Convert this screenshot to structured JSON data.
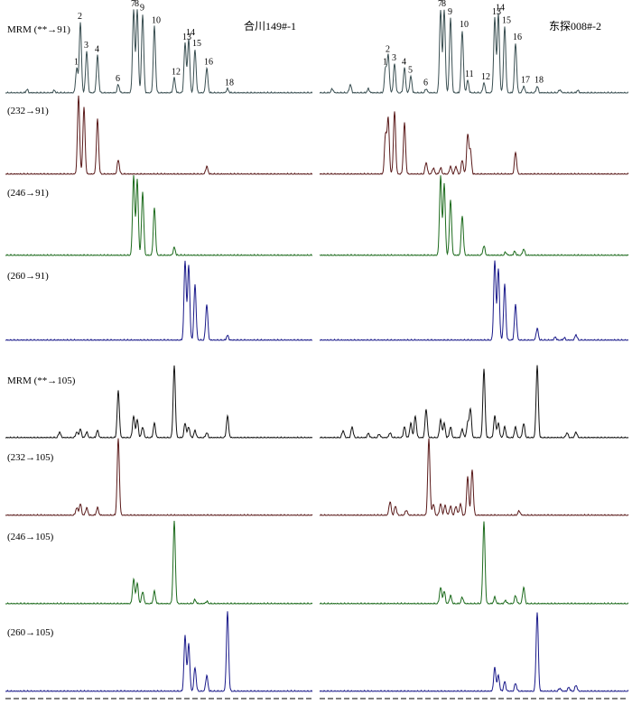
{
  "chart_data": {
    "type": "line",
    "title": "",
    "xlabel": "",
    "ylabel": "",
    "grid": false,
    "columns": [
      {
        "sample": "合川149#-1"
      },
      {
        "sample": "东探008#-2"
      }
    ],
    "rows": [
      {
        "label": "MRM (**→91)",
        "color": "#3a4f52",
        "peak_labels": true
      },
      {
        "label": "(232→91)",
        "color": "#5a1a1a"
      },
      {
        "label": "(246→91)",
        "color": "#1d6b1d"
      },
      {
        "label": "(260→91)",
        "color": "#1a1a8a"
      },
      {
        "label": "MRM (**→105)",
        "color": "#111111"
      },
      {
        "label": "(232→105)",
        "color": "#5a1a1a"
      },
      {
        "label": "(246→105)",
        "color": "#1d6b1d"
      },
      {
        "label": "(260→105)",
        "color": "#1a1a8a"
      }
    ],
    "peak_labels": [
      [
        "1",
        "2",
        "3",
        "4",
        "6",
        "7",
        "8",
        "9",
        "10",
        "12",
        "13",
        "14",
        "15",
        "16",
        "18"
      ],
      [
        "1",
        "2",
        "3",
        "4",
        "5",
        "6",
        "7",
        "8",
        "9",
        "10",
        "11",
        "12",
        "13",
        "14",
        "15",
        "16",
        "17",
        "18"
      ]
    ],
    "peaks": [
      [
        [
          [
            85,
            0.3
          ],
          [
            89,
            0.85
          ],
          [
            96,
            0.5
          ],
          [
            108,
            0.45
          ],
          [
            131,
            0.1
          ],
          [
            148,
            1.0
          ],
          [
            152,
            1.0
          ],
          [
            158,
            0.95
          ],
          [
            171,
            0.8
          ],
          [
            193,
            0.18
          ],
          [
            205,
            0.6
          ],
          [
            209,
            0.65
          ],
          [
            216,
            0.52
          ],
          [
            229,
            0.3
          ],
          [
            252,
            0.05
          ],
          [
            30,
            0.04
          ],
          [
            60,
            0.03
          ]
        ],
        [
          [
            87,
            1.0
          ],
          [
            93,
            0.85
          ],
          [
            108,
            0.7
          ],
          [
            131,
            0.18
          ],
          [
            229,
            0.1
          ]
        ],
        [
          [
            148,
            1.0
          ],
          [
            152,
            0.95
          ],
          [
            158,
            0.8
          ],
          [
            171,
            0.6
          ],
          [
            193,
            0.1
          ]
        ],
        [
          [
            205,
            1.0
          ],
          [
            209,
            0.95
          ],
          [
            216,
            0.7
          ],
          [
            229,
            0.45
          ],
          [
            252,
            0.06
          ]
        ],
        [
          [
            66,
            0.08
          ],
          [
            85,
            0.08
          ],
          [
            89,
            0.12
          ],
          [
            96,
            0.08
          ],
          [
            108,
            0.1
          ],
          [
            131,
            0.65
          ],
          [
            148,
            0.3
          ],
          [
            152,
            0.25
          ],
          [
            158,
            0.15
          ],
          [
            171,
            0.2
          ],
          [
            193,
            1.0
          ],
          [
            205,
            0.2
          ],
          [
            209,
            0.15
          ],
          [
            216,
            0.1
          ],
          [
            229,
            0.07
          ],
          [
            252,
            0.3
          ]
        ],
        [
          [
            85,
            0.1
          ],
          [
            89,
            0.15
          ],
          [
            96,
            0.1
          ],
          [
            108,
            0.1
          ],
          [
            131,
            1.0
          ]
        ],
        [
          [
            148,
            0.3
          ],
          [
            152,
            0.25
          ],
          [
            158,
            0.15
          ],
          [
            171,
            0.15
          ],
          [
            193,
            1.0
          ],
          [
            216,
            0.05
          ],
          [
            229,
            0.03
          ]
        ],
        [
          [
            205,
            0.7
          ],
          [
            209,
            0.6
          ],
          [
            216,
            0.3
          ],
          [
            229,
            0.2
          ],
          [
            252,
            1.0
          ]
        ]
      ],
      [
        [
          [
            427,
            0.3
          ],
          [
            430,
            0.45
          ],
          [
            437,
            0.35
          ],
          [
            448,
            0.3
          ],
          [
            455,
            0.2
          ],
          [
            472,
            0.05
          ],
          [
            488,
            1.0
          ],
          [
            492,
            1.0
          ],
          [
            499,
            0.9
          ],
          [
            512,
            0.75
          ],
          [
            518,
            0.15
          ],
          [
            536,
            0.12
          ],
          [
            548,
            0.9
          ],
          [
            552,
            0.95
          ],
          [
            559,
            0.8
          ],
          [
            571,
            0.6
          ],
          [
            580,
            0.08
          ],
          [
            595,
            0.08
          ],
          [
            368,
            0.05
          ],
          [
            388,
            0.1
          ],
          [
            408,
            0.05
          ],
          [
            620,
            0.04
          ],
          [
            640,
            0.03
          ]
        ],
        [
          [
            427,
            0.5
          ],
          [
            430,
            0.7
          ],
          [
            437,
            0.8
          ],
          [
            448,
            0.65
          ],
          [
            472,
            0.15
          ],
          [
            480,
            0.08
          ],
          [
            488,
            0.08
          ],
          [
            499,
            0.1
          ],
          [
            505,
            0.1
          ],
          [
            512,
            0.18
          ],
          [
            518,
            0.5
          ],
          [
            521,
            0.3
          ],
          [
            571,
            0.28
          ]
        ],
        [
          [
            488,
            1.0
          ],
          [
            492,
            0.9
          ],
          [
            499,
            0.7
          ],
          [
            512,
            0.5
          ],
          [
            536,
            0.12
          ],
          [
            560,
            0.04
          ],
          [
            570,
            0.05
          ],
          [
            580,
            0.08
          ]
        ],
        [
          [
            548,
            1.0
          ],
          [
            552,
            0.9
          ],
          [
            559,
            0.7
          ],
          [
            571,
            0.45
          ],
          [
            595,
            0.15
          ],
          [
            615,
            0.04
          ],
          [
            625,
            0.03
          ],
          [
            638,
            0.07
          ]
        ],
        [
          [
            380,
            0.1
          ],
          [
            390,
            0.15
          ],
          [
            408,
            0.06
          ],
          [
            420,
            0.05
          ],
          [
            432,
            0.07
          ],
          [
            448,
            0.15
          ],
          [
            455,
            0.2
          ],
          [
            460,
            0.3
          ],
          [
            472,
            0.4
          ],
          [
            488,
            0.25
          ],
          [
            492,
            0.2
          ],
          [
            499,
            0.15
          ],
          [
            512,
            0.12
          ],
          [
            518,
            0.2
          ],
          [
            521,
            0.4
          ],
          [
            536,
            0.95
          ],
          [
            548,
            0.3
          ],
          [
            552,
            0.2
          ],
          [
            559,
            0.15
          ],
          [
            571,
            0.15
          ],
          [
            580,
            0.2
          ],
          [
            595,
            1.0
          ],
          [
            628,
            0.07
          ],
          [
            638,
            0.08
          ]
        ],
        [
          [
            432,
            0.18
          ],
          [
            438,
            0.12
          ],
          [
            450,
            0.07
          ],
          [
            475,
            1.0
          ],
          [
            480,
            0.15
          ],
          [
            488,
            0.15
          ],
          [
            493,
            0.13
          ],
          [
            499,
            0.12
          ],
          [
            505,
            0.12
          ],
          [
            510,
            0.15
          ],
          [
            518,
            0.5
          ],
          [
            523,
            0.6
          ],
          [
            575,
            0.06
          ]
        ],
        [
          [
            488,
            0.2
          ],
          [
            492,
            0.15
          ],
          [
            499,
            0.1
          ],
          [
            512,
            0.08
          ],
          [
            536,
            1.0
          ],
          [
            548,
            0.08
          ],
          [
            560,
            0.04
          ],
          [
            571,
            0.1
          ],
          [
            580,
            0.2
          ]
        ],
        [
          [
            548,
            0.3
          ],
          [
            552,
            0.2
          ],
          [
            559,
            0.12
          ],
          [
            571,
            0.1
          ],
          [
            595,
            1.0
          ],
          [
            620,
            0.04
          ],
          [
            630,
            0.05
          ],
          [
            638,
            0.08
          ]
        ]
      ]
    ]
  }
}
